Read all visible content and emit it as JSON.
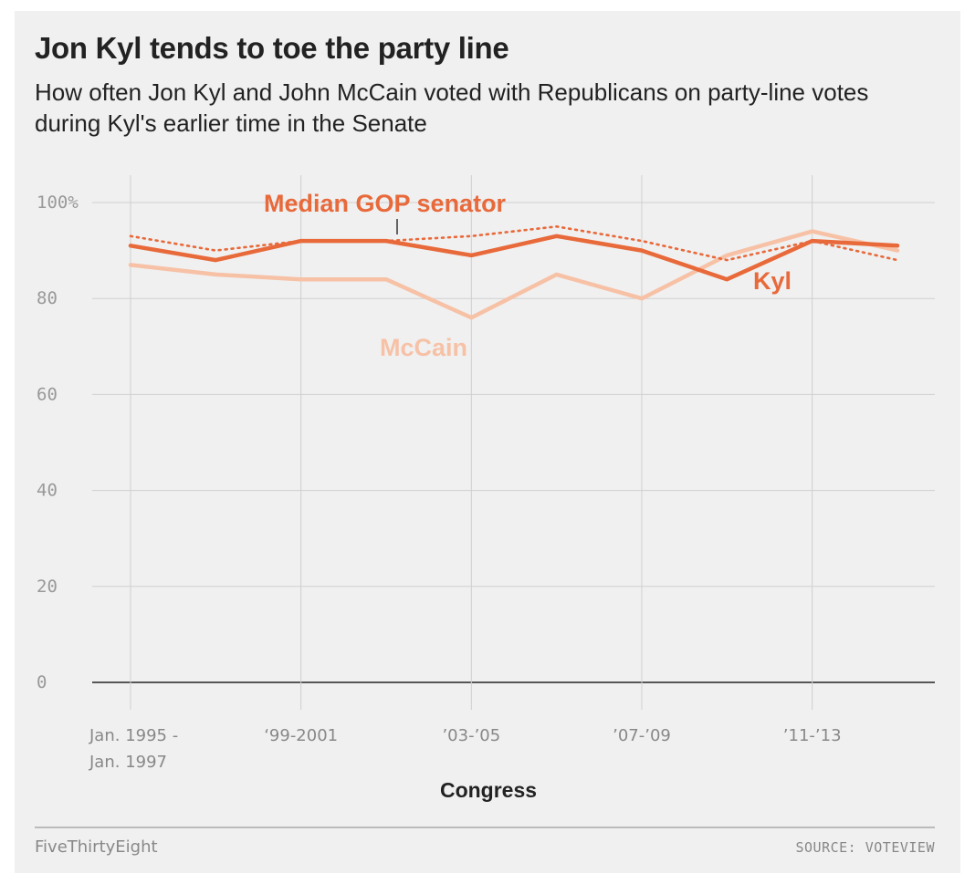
{
  "chart_data": {
    "type": "line",
    "title": "Jon Kyl tends to toe the party line",
    "subtitle": "How often Jon Kyl and John McCain voted with Republicans on party-line votes during Kyl's earlier time in the Senate",
    "xlabel": "Congress",
    "ylabel": "",
    "ylim": [
      0,
      100
    ],
    "yticks": [
      "100%",
      "80",
      "60",
      "40",
      "20",
      "0"
    ],
    "x": [
      1995,
      1997,
      1999,
      2001,
      2003,
      2005,
      2007,
      2009,
      2011,
      2013
    ],
    "xtick_labels": [
      {
        "x": 1995,
        "lines": [
          "Jan. 1995 -",
          "Jan. 1997"
        ]
      },
      {
        "x": 1999,
        "lines": [
          "‘99-2001"
        ]
      },
      {
        "x": 2003,
        "lines": [
          "’03-’05"
        ]
      },
      {
        "x": 2007,
        "lines": [
          "’07-’09"
        ]
      },
      {
        "x": 2011,
        "lines": [
          "’11-’13"
        ]
      }
    ],
    "grid": true,
    "series": [
      {
        "name": "Median GOP senator",
        "style": "dotted",
        "color": "#e8693a",
        "values": [
          93,
          90,
          92,
          92,
          93,
          95,
          92,
          88,
          92,
          88
        ]
      },
      {
        "name": "McCain",
        "style": "solid",
        "color": "#f7c1a6",
        "values": [
          87,
          85,
          84,
          84,
          76,
          85,
          80,
          89,
          94,
          90
        ]
      },
      {
        "name": "Kyl",
        "style": "solid",
        "color": "#e8693a",
        "values": [
          91,
          88,
          92,
          92,
          89,
          93,
          90,
          84,
          92,
          91
        ]
      }
    ]
  },
  "footer": {
    "brand": "FiveThirtyEight",
    "source": "SOURCE: VOTEVIEW"
  },
  "colors": {
    "background": "#f0f0f0",
    "accent": "#e8693a",
    "mccain": "#f7c1a6"
  }
}
